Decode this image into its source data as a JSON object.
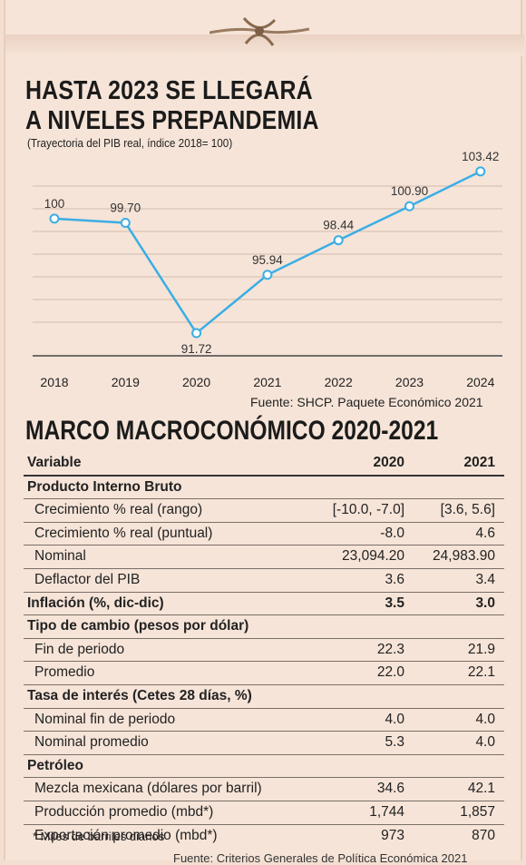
{
  "header": {
    "title_line1": "HASTA 2023 SE LLEGARÁ",
    "title_line2": "A NIVELES PREPANDEMIA",
    "subtitle": "(Trayectoria del PIB real, índice 2018= 100)",
    "source": "Fuente: SHCP. Paquete Económico 2021"
  },
  "chart_data": {
    "type": "line",
    "categories": [
      "2018",
      "2019",
      "2020",
      "2021",
      "2022",
      "2023",
      "2024"
    ],
    "values": [
      100,
      99.7,
      91.72,
      95.94,
      98.44,
      100.9,
      103.42
    ],
    "value_labels": [
      "100",
      "99.70",
      "91.72",
      "95.94",
      "98.44",
      "100.90",
      "103.42"
    ],
    "ylim": [
      91,
      104
    ],
    "grid": true,
    "line_color": "#3aaee5",
    "title": "HASTA 2023 SE LLEGARÁ A NIVELES PREPANDEMIA",
    "subtitle": "(Trayectoria del PIB real, índice 2018= 100)"
  },
  "table": {
    "title": "MARCO MACROCONÓMICO 2020-2021",
    "col_variable": "Variable",
    "col_2020": "2020",
    "col_2021": "2021",
    "rows": [
      {
        "label": "Producto Interno Bruto",
        "v1": "",
        "v2": ""
      },
      {
        "label": "Crecimiento % real (rango)",
        "v1": "[-10.0, -7.0]",
        "v2": "[3.6, 5.6]"
      },
      {
        "label": "Crecimiento % real (puntual)",
        "v1": "-8.0",
        "v2": "4.6"
      },
      {
        "label": "Nominal",
        "v1": "23,094.20",
        "v2": "24,983.90"
      },
      {
        "label": "Deflactor del PIB",
        "v1": "3.6",
        "v2": "3.4"
      },
      {
        "label": "Inflación (%, dic-dic)",
        "v1": "3.5",
        "v2": "3.0"
      },
      {
        "label": "Tipo de cambio (pesos por dólar)",
        "v1": "",
        "v2": ""
      },
      {
        "label": "Fin de periodo",
        "v1": "22.3",
        "v2": "21.9"
      },
      {
        "label": "Promedio",
        "v1": "22.0",
        "v2": "22.1"
      },
      {
        "label": "Tasa de interés (Cetes 28 días, %)",
        "v1": "",
        "v2": ""
      },
      {
        "label": "Nominal fin de periodo",
        "v1": "4.0",
        "v2": "4.0"
      },
      {
        "label": "Nominal promedio",
        "v1": "5.3",
        "v2": "4.0"
      },
      {
        "label": "Petróleo",
        "v1": "",
        "v2": ""
      },
      {
        "label": "Mezcla mexicana (dólares por barril)",
        "v1": "34.6",
        "v2": "42.1"
      },
      {
        "label": "Producción promedio (mbd*)",
        "v1": "1,744",
        "v2": "1,857"
      },
      {
        "label": "Exportación promedio (mbd*)",
        "v1": "973",
        "v2": "870"
      }
    ],
    "note": "* Miles de barriles diarios",
    "cut_footer": "Fuente: Criterios Generales de Política Económica 2021"
  }
}
